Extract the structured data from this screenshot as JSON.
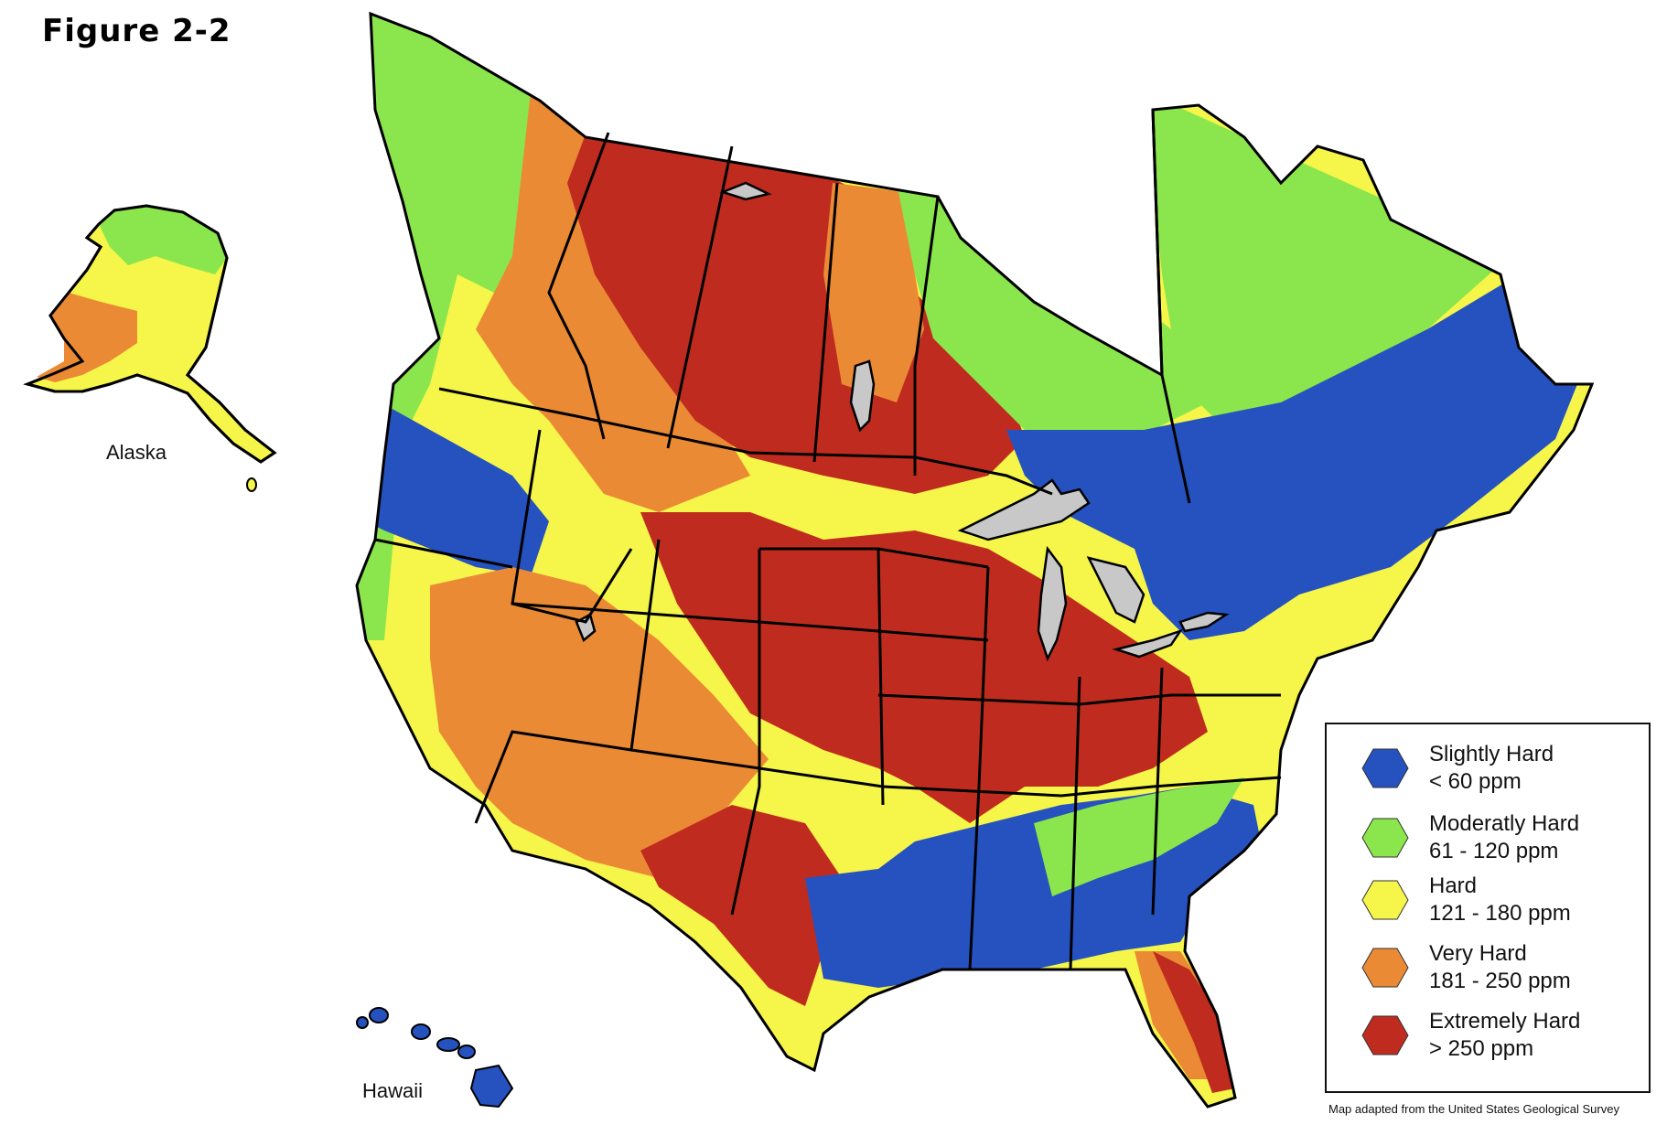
{
  "figure_title": "Figure 2-2",
  "labels": {
    "alaska": "Alaska",
    "hawaii": "Hawaii"
  },
  "legend": {
    "items": [
      {
        "name": "Slightly Hard",
        "range": "< 60 ppm",
        "color": "#2652bf"
      },
      {
        "name": "Moderatly Hard",
        "range": "61 - 120 ppm",
        "color": "#8ae64c"
      },
      {
        "name": "Hard",
        "range": "121 - 180 ppm",
        "color": "#f5f54a"
      },
      {
        "name": "Very Hard",
        "range": "181 - 250 ppm",
        "color": "#eb8a34"
      },
      {
        "name": "Extremely Hard",
        "range": "> 250 ppm",
        "color": "#bf2c1f"
      }
    ]
  },
  "lake_color": "#c8c8c8",
  "credit": "Map adapted from the United States Geological Survey"
}
